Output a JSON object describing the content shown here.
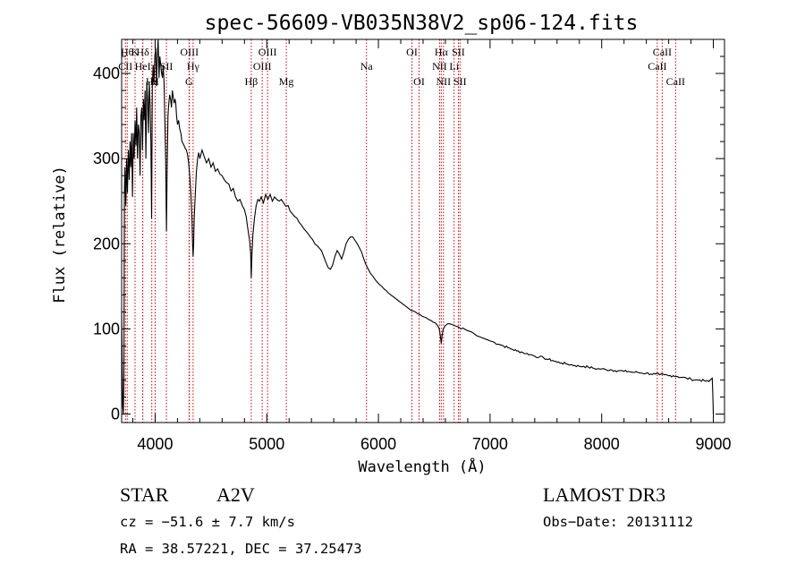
{
  "chart_data": {
    "type": "line",
    "title": "spec-56609-VB035N38V2_sp06-124.fits",
    "xlabel": "Wavelength (Å)",
    "ylabel": "Flux (relative)",
    "xlim": [
      3700,
      9100
    ],
    "ylim": [
      -10,
      440
    ],
    "x_ticks": [
      4000,
      5000,
      6000,
      7000,
      8000,
      9000
    ],
    "y_ticks": [
      0,
      100,
      200,
      300,
      400
    ],
    "x_ticks_labels": [
      "4000",
      "5000",
      "6000",
      "7000",
      "8000",
      "9000"
    ],
    "y_ticks_labels": [
      "0",
      "100",
      "200",
      "300",
      "400"
    ],
    "series": [
      {
        "name": "flux",
        "points": [
          [
            3700,
            120
          ],
          [
            3705,
            60
          ],
          [
            3710,
            10
          ],
          [
            3715,
            0
          ],
          [
            3720,
            40
          ],
          [
            3725,
            260
          ],
          [
            3730,
            290
          ],
          [
            3738,
            245
          ],
          [
            3745,
            300
          ],
          [
            3752,
            260
          ],
          [
            3760,
            310
          ],
          [
            3768,
            275
          ],
          [
            3775,
            320
          ],
          [
            3782,
            290
          ],
          [
            3790,
            330
          ],
          [
            3797,
            255
          ],
          [
            3805,
            330
          ],
          [
            3812,
            300
          ],
          [
            3820,
            345
          ],
          [
            3828,
            315
          ],
          [
            3835,
            360
          ],
          [
            3842,
            300
          ],
          [
            3850,
            340
          ],
          [
            3858,
            330
          ],
          [
            3865,
            280
          ],
          [
            3872,
            350
          ],
          [
            3880,
            360
          ],
          [
            3887,
            310
          ],
          [
            3895,
            370
          ],
          [
            3902,
            345
          ],
          [
            3910,
            380
          ],
          [
            3917,
            300
          ],
          [
            3925,
            390
          ],
          [
            3932,
            370
          ],
          [
            3940,
            330
          ],
          [
            3947,
            390
          ],
          [
            3955,
            365
          ],
          [
            3962,
            320
          ],
          [
            3968,
            230
          ],
          [
            3975,
            385
          ],
          [
            3982,
            410
          ],
          [
            3990,
            390
          ],
          [
            3997,
            420
          ],
          [
            4005,
            430
          ],
          [
            4012,
            385
          ],
          [
            4020,
            420
          ],
          [
            4027,
            440
          ],
          [
            4035,
            395
          ],
          [
            4042,
            420
          ],
          [
            4050,
            410
          ],
          [
            4058,
            400
          ],
          [
            4065,
            395
          ],
          [
            4072,
            410
          ],
          [
            4080,
            390
          ],
          [
            4087,
            345
          ],
          [
            4094,
            300
          ],
          [
            4101,
            215
          ],
          [
            4108,
            290
          ],
          [
            4115,
            350
          ],
          [
            4122,
            365
          ],
          [
            4130,
            375
          ],
          [
            4138,
            370
          ],
          [
            4146,
            360
          ],
          [
            4154,
            380
          ],
          [
            4162,
            372
          ],
          [
            4170,
            365
          ],
          [
            4178,
            370
          ],
          [
            4185,
            365
          ],
          [
            4192,
            350
          ],
          [
            4200,
            340
          ],
          [
            4210,
            345
          ],
          [
            4220,
            335
          ],
          [
            4230,
            330
          ],
          [
            4240,
            320
          ],
          [
            4250,
            318
          ],
          [
            4260,
            315
          ],
          [
            4270,
            312
          ],
          [
            4280,
            310
          ],
          [
            4290,
            305
          ],
          [
            4300,
            295
          ],
          [
            4310,
            280
          ],
          [
            4320,
            260
          ],
          [
            4330,
            230
          ],
          [
            4335,
            200
          ],
          [
            4340,
            185
          ],
          [
            4345,
            200
          ],
          [
            4350,
            230
          ],
          [
            4360,
            260
          ],
          [
            4370,
            285
          ],
          [
            4380,
            300
          ],
          [
            4390,
            307
          ],
          [
            4400,
            300
          ],
          [
            4420,
            310
          ],
          [
            4440,
            302
          ],
          [
            4460,
            295
          ],
          [
            4480,
            300
          ],
          [
            4500,
            290
          ],
          [
            4520,
            295
          ],
          [
            4540,
            285
          ],
          [
            4560,
            288
          ],
          [
            4580,
            282
          ],
          [
            4600,
            280
          ],
          [
            4620,
            275
          ],
          [
            4640,
            272
          ],
          [
            4660,
            270
          ],
          [
            4680,
            262
          ],
          [
            4700,
            265
          ],
          [
            4720,
            255
          ],
          [
            4740,
            250
          ],
          [
            4760,
            252
          ],
          [
            4780,
            245
          ],
          [
            4800,
            240
          ],
          [
            4815,
            232
          ],
          [
            4830,
            218
          ],
          [
            4845,
            205
          ],
          [
            4855,
            190
          ],
          [
            4861,
            160
          ],
          [
            4867,
            188
          ],
          [
            4875,
            210
          ],
          [
            4890,
            230
          ],
          [
            4905,
            245
          ],
          [
            4920,
            252
          ],
          [
            4935,
            250
          ],
          [
            4950,
            255
          ],
          [
            4970,
            248
          ],
          [
            4990,
            258
          ],
          [
            5010,
            252
          ],
          [
            5030,
            258
          ],
          [
            5050,
            250
          ],
          [
            5070,
            255
          ],
          [
            5090,
            252
          ],
          [
            5110,
            250
          ],
          [
            5130,
            252
          ],
          [
            5150,
            248
          ],
          [
            5170,
            244
          ],
          [
            5190,
            245
          ],
          [
            5210,
            238
          ],
          [
            5230,
            235
          ],
          [
            5250,
            232
          ],
          [
            5270,
            230
          ],
          [
            5290,
            225
          ],
          [
            5310,
            222
          ],
          [
            5330,
            218
          ],
          [
            5350,
            215
          ],
          [
            5370,
            212
          ],
          [
            5390,
            208
          ],
          [
            5410,
            205
          ],
          [
            5430,
            200
          ],
          [
            5450,
            198
          ],
          [
            5470,
            195
          ],
          [
            5490,
            192
          ],
          [
            5510,
            185
          ],
          [
            5530,
            178
          ],
          [
            5550,
            172
          ],
          [
            5570,
            170
          ],
          [
            5590,
            175
          ],
          [
            5610,
            185
          ],
          [
            5630,
            192
          ],
          [
            5650,
            188
          ],
          [
            5670,
            182
          ],
          [
            5690,
            190
          ],
          [
            5710,
            200
          ],
          [
            5730,
            205
          ],
          [
            5750,
            208
          ],
          [
            5770,
            208
          ],
          [
            5790,
            204
          ],
          [
            5810,
            200
          ],
          [
            5830,
            195
          ],
          [
            5850,
            190
          ],
          [
            5870,
            182
          ],
          [
            5890,
            175
          ],
          [
            5910,
            170
          ],
          [
            5930,
            165
          ],
          [
            5950,
            162
          ],
          [
            5970,
            158
          ],
          [
            5990,
            155
          ],
          [
            6010,
            152
          ],
          [
            6030,
            150
          ],
          [
            6050,
            147
          ],
          [
            6070,
            145
          ],
          [
            6090,
            142
          ],
          [
            6110,
            140
          ],
          [
            6130,
            138
          ],
          [
            6150,
            136
          ],
          [
            6170,
            134
          ],
          [
            6190,
            132
          ],
          [
            6210,
            130
          ],
          [
            6230,
            128
          ],
          [
            6250,
            126
          ],
          [
            6270,
            124
          ],
          [
            6290,
            122
          ],
          [
            6310,
            121
          ],
          [
            6330,
            120
          ],
          [
            6350,
            118
          ],
          [
            6370,
            117
          ],
          [
            6390,
            115
          ],
          [
            6410,
            114
          ],
          [
            6430,
            113
          ],
          [
            6450,
            111
          ],
          [
            6470,
            110
          ],
          [
            6490,
            108
          ],
          [
            6510,
            107
          ],
          [
            6530,
            104
          ],
          [
            6545,
            100
          ],
          [
            6555,
            92
          ],
          [
            6563,
            83
          ],
          [
            6571,
            92
          ],
          [
            6580,
            100
          ],
          [
            6600,
            104
          ],
          [
            6620,
            106
          ],
          [
            6640,
            106
          ],
          [
            6660,
            105
          ],
          [
            6680,
            104
          ],
          [
            6700,
            103
          ],
          [
            6720,
            102
          ],
          [
            6740,
            100
          ],
          [
            6760,
            101
          ],
          [
            6780,
            99
          ],
          [
            6800,
            98
          ],
          [
            6820,
            97
          ],
          [
            6840,
            96
          ],
          [
            6860,
            94
          ],
          [
            6880,
            92
          ],
          [
            6900,
            91
          ],
          [
            6920,
            90
          ],
          [
            6940,
            89
          ],
          [
            6960,
            88
          ],
          [
            6980,
            87
          ],
          [
            7000,
            86
          ],
          [
            7040,
            84
          ],
          [
            7080,
            82
          ],
          [
            7120,
            80
          ],
          [
            7160,
            78
          ],
          [
            7200,
            76
          ],
          [
            7240,
            74
          ],
          [
            7280,
            73
          ],
          [
            7320,
            71
          ],
          [
            7360,
            70
          ],
          [
            7400,
            68
          ],
          [
            7440,
            67
          ],
          [
            7480,
            66
          ],
          [
            7520,
            64
          ],
          [
            7560,
            63
          ],
          [
            7600,
            61
          ],
          [
            7640,
            60
          ],
          [
            7680,
            59
          ],
          [
            7720,
            58
          ],
          [
            7760,
            57
          ],
          [
            7800,
            56
          ],
          [
            7840,
            56
          ],
          [
            7880,
            55
          ],
          [
            7920,
            54
          ],
          [
            7960,
            53
          ],
          [
            8000,
            53
          ],
          [
            8040,
            52
          ],
          [
            8080,
            52
          ],
          [
            8120,
            51
          ],
          [
            8160,
            51
          ],
          [
            8200,
            50
          ],
          [
            8240,
            50
          ],
          [
            8280,
            49
          ],
          [
            8320,
            49
          ],
          [
            8360,
            48
          ],
          [
            8400,
            48
          ],
          [
            8440,
            47
          ],
          [
            8480,
            47
          ],
          [
            8520,
            46
          ],
          [
            8560,
            46
          ],
          [
            8600,
            45
          ],
          [
            8640,
            45
          ],
          [
            8680,
            44
          ],
          [
            8720,
            43
          ],
          [
            8760,
            42
          ],
          [
            8800,
            41
          ],
          [
            8840,
            40
          ],
          [
            8880,
            40
          ],
          [
            8920,
            39
          ],
          [
            8960,
            38
          ],
          [
            8990,
            42
          ],
          [
            8995,
            25
          ],
          [
            9000,
            0
          ]
        ]
      }
    ],
    "line_markers": [
      {
        "wl": 3750,
        "label": "Hθ",
        "row": 1
      },
      {
        "wl": 3820,
        "label": "K",
        "row": 1
      },
      {
        "wl": 3889,
        "label": "Hδ",
        "row": 1
      },
      {
        "wl": 3734,
        "label": "CII",
        "row": 2
      },
      {
        "wl": 3889,
        "label": "HeI",
        "row": 2
      },
      {
        "wl": 3970,
        "label": "Hε",
        "row": 3
      },
      {
        "wl": 4000,
        "label": "H",
        "row": 3
      },
      {
        "wl": 4101,
        "label": "SII",
        "row": 2
      },
      {
        "wl": 4307,
        "label": "OIII",
        "row": 1
      },
      {
        "wl": 4340,
        "label": "Hγ",
        "row": 2
      },
      {
        "wl": 4304,
        "label": "G",
        "row": 3
      },
      {
        "wl": 4861,
        "label": "Hβ",
        "row": 3
      },
      {
        "wl": 4959,
        "label": "OIII",
        "row": 2
      },
      {
        "wl": 5007,
        "label": "OIII",
        "row": 1
      },
      {
        "wl": 5175,
        "label": "Mg",
        "row": 3
      },
      {
        "wl": 5893,
        "label": "Na",
        "row": 2
      },
      {
        "wl": 6300,
        "label": "OI",
        "row": 1
      },
      {
        "wl": 6364,
        "label": "OI",
        "row": 3
      },
      {
        "wl": 6548,
        "label": "NII",
        "row": 2
      },
      {
        "wl": 6563,
        "label": "Hα",
        "row": 1
      },
      {
        "wl": 6583,
        "label": "NII",
        "row": 3
      },
      {
        "wl": 6678,
        "label": "Li",
        "row": 2
      },
      {
        "wl": 6716,
        "label": "SII",
        "row": 1
      },
      {
        "wl": 6731,
        "label": "SII",
        "row": 3
      },
      {
        "wl": 8498,
        "label": "CaII",
        "row": 2
      },
      {
        "wl": 8542,
        "label": "CaII",
        "row": 1
      },
      {
        "wl": 8662,
        "label": "CaII",
        "row": 3
      }
    ]
  },
  "info": {
    "class_label": "STAR",
    "subclass": "A2V",
    "survey": "LAMOST DR3",
    "cz": "cz = −51.6 ± 7.7 km/s",
    "obs_date": "Obs−Date: 20131112",
    "coords": "RA =  38.57221, DEC =  37.25473"
  },
  "colors": {
    "spectrum": "#000000",
    "marker": "#cc0000"
  }
}
